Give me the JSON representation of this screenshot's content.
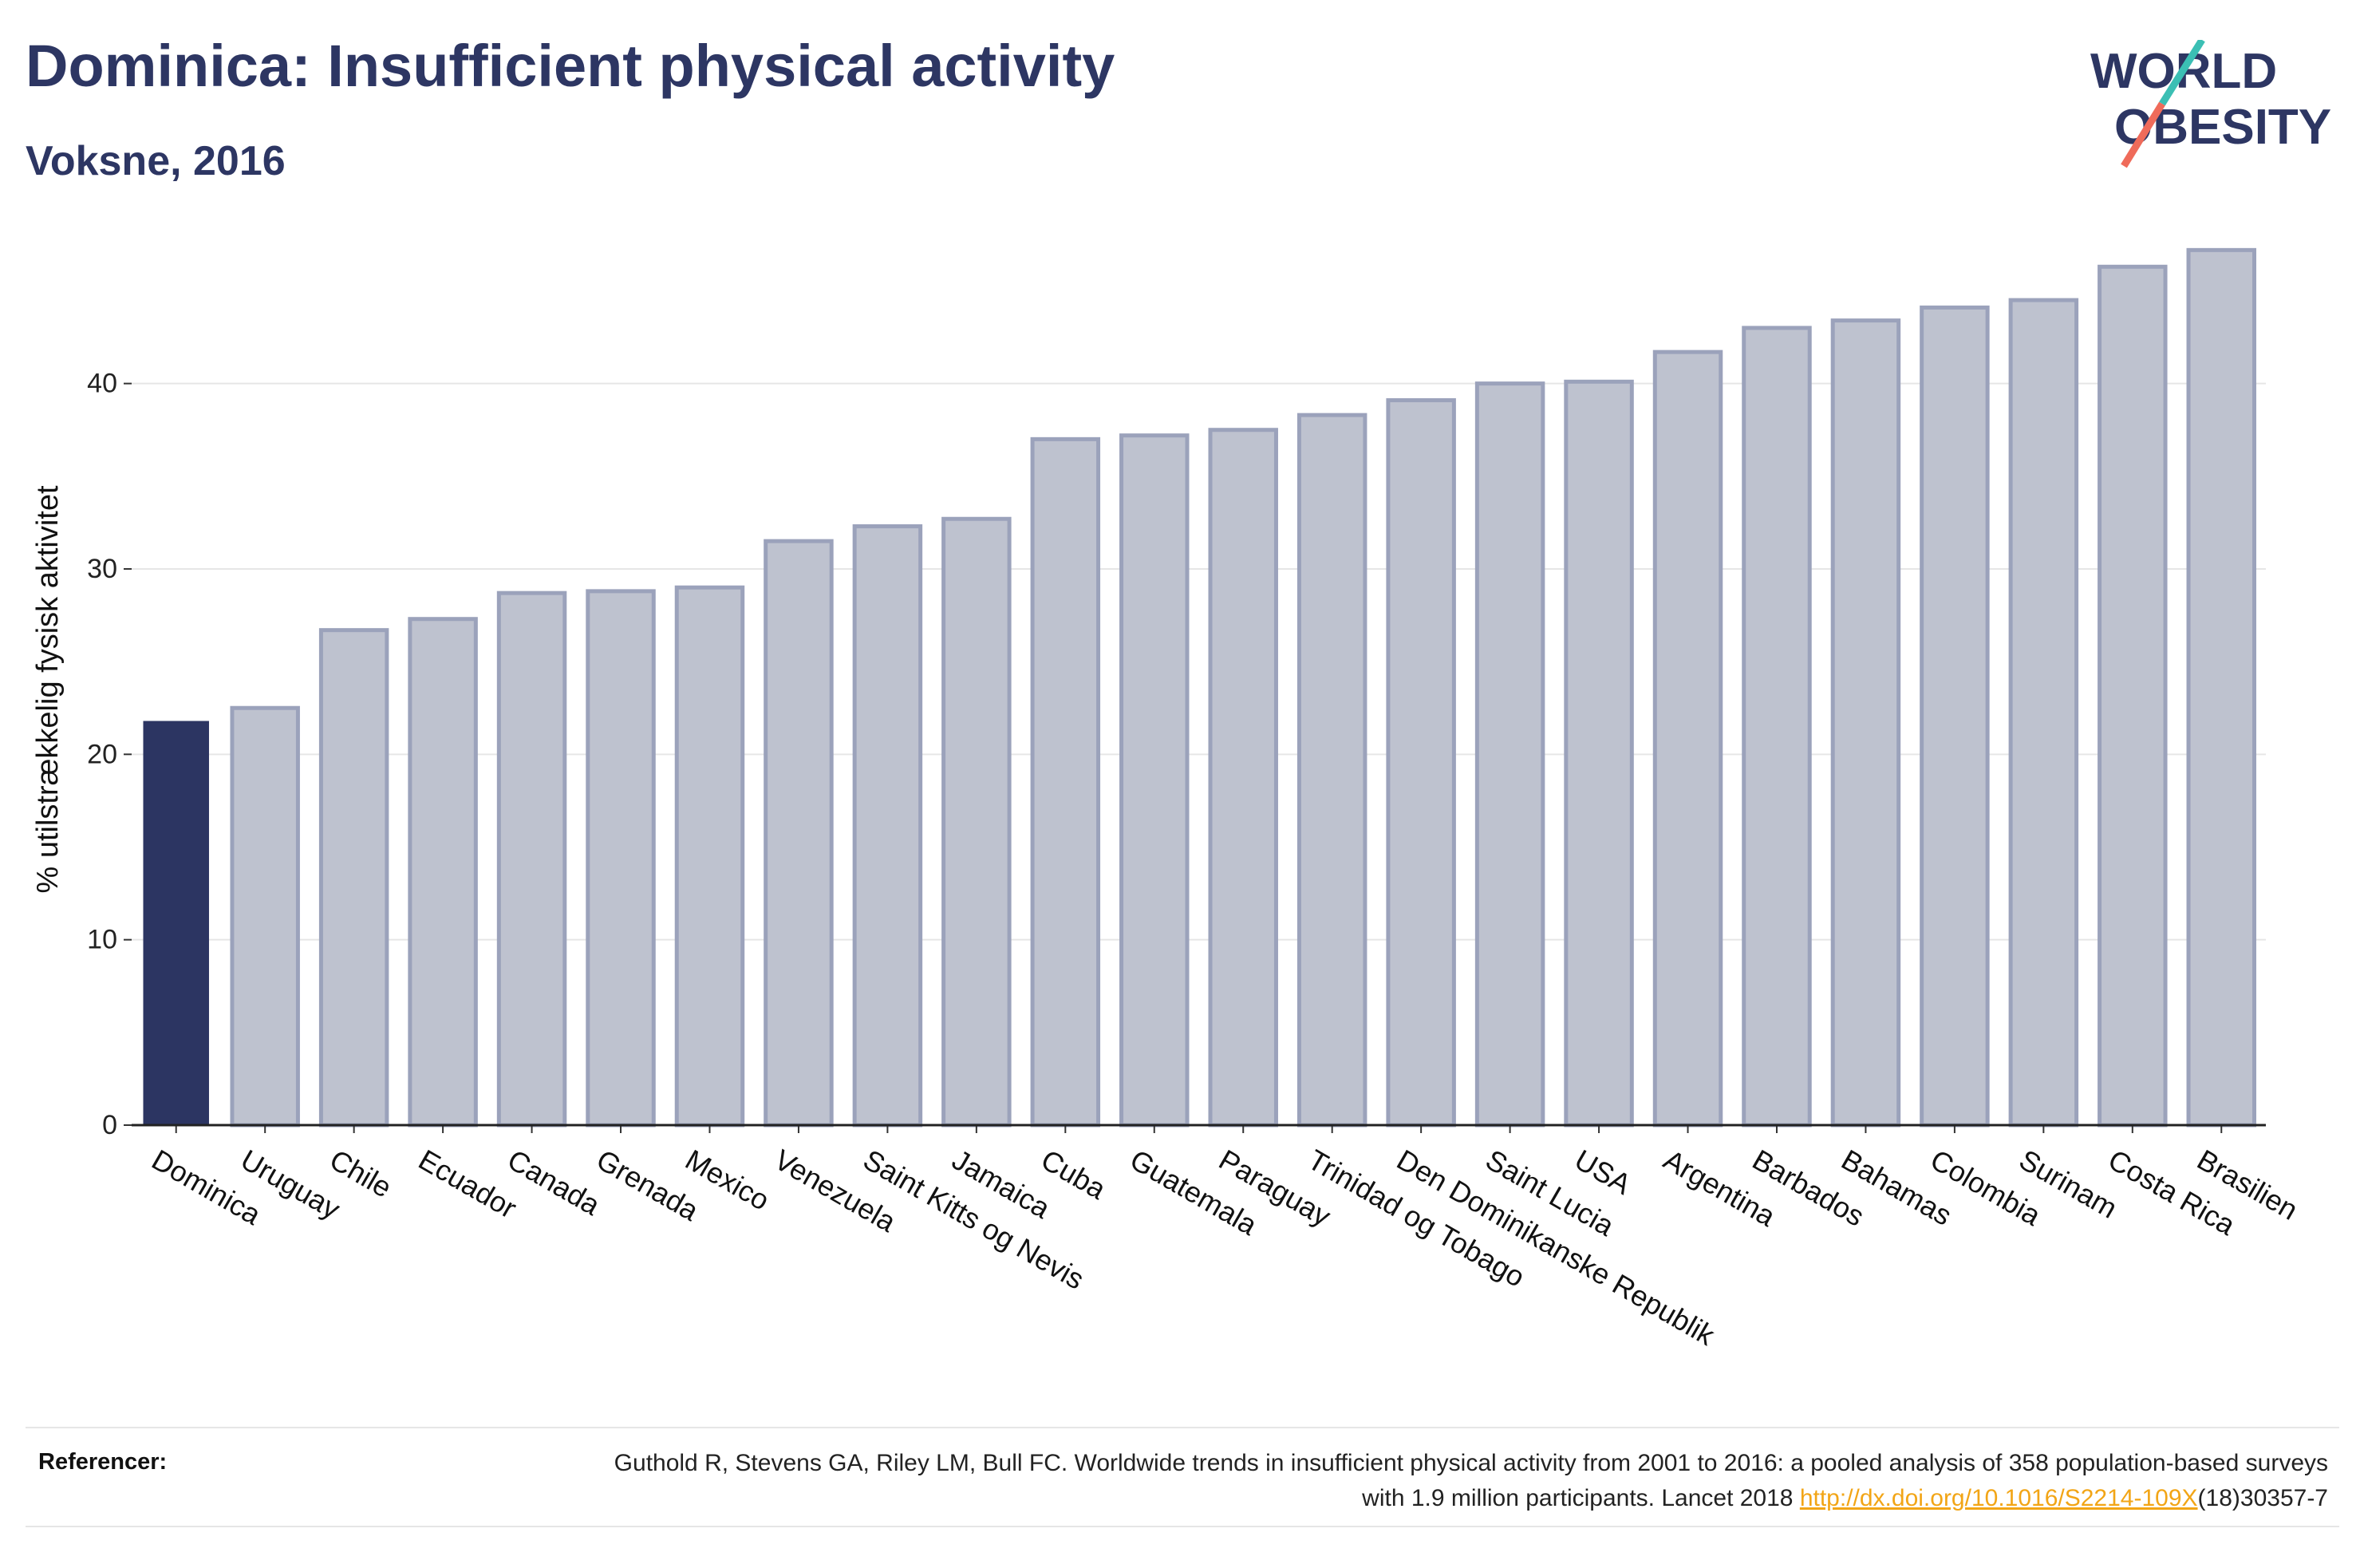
{
  "header": {
    "title": "Dominica: Insufficient physical activity",
    "subtitle": "Voksne, 2016"
  },
  "logo": {
    "line1": "WORLD",
    "line2": "OBESITY",
    "text_color": "#2d3663",
    "slash_colors": [
      "#3bbfb4",
      "#ef6b5a"
    ]
  },
  "chart_data": {
    "type": "bar",
    "ylabel": "% utilstrækkelig fysisk aktivitet",
    "xlabel": "",
    "ylim": [
      0,
      47
    ],
    "yticks": [
      0,
      10,
      20,
      30,
      40
    ],
    "grid": true,
    "highlight_color": "#2c3562",
    "bar_color": "#bec2cf",
    "categories": [
      "Dominica",
      "Uruguay",
      "Chile",
      "Ecuador",
      "Canada",
      "Grenada",
      "Mexico",
      "Venezuela",
      "Saint Kitts og Nevis",
      "Jamaica",
      "Cuba",
      "Guatemala",
      "Paraguay",
      "Trinidad og Tobago",
      "Den Dominikanske Republik",
      "Saint Lucia",
      "USA",
      "Argentina",
      "Barbados",
      "Bahamas",
      "Colombia",
      "Surinam",
      "Costa Rica",
      "Brasilien"
    ],
    "values": [
      21.8,
      22.5,
      26.7,
      27.3,
      28.7,
      28.8,
      29.0,
      31.5,
      32.3,
      32.7,
      37.0,
      37.2,
      37.5,
      38.3,
      39.1,
      40.0,
      40.1,
      41.7,
      43.0,
      43.4,
      44.1,
      44.5,
      46.3,
      47.2
    ],
    "highlight": "Dominica"
  },
  "footer": {
    "references_label": "Referencer:",
    "reference_text_1": "Guthold R, Stevens GA, Riley LM, Bull FC. Worldwide trends in insufficient physical activity from 2001 to 2016: a pooled analysis of 358 population-based surveys with 1.9 million participants. Lancet 2018 ",
    "reference_link": "http://dx.doi.org/10.1016/S2214-109X",
    "reference_text_2": "(18)30357-7"
  }
}
